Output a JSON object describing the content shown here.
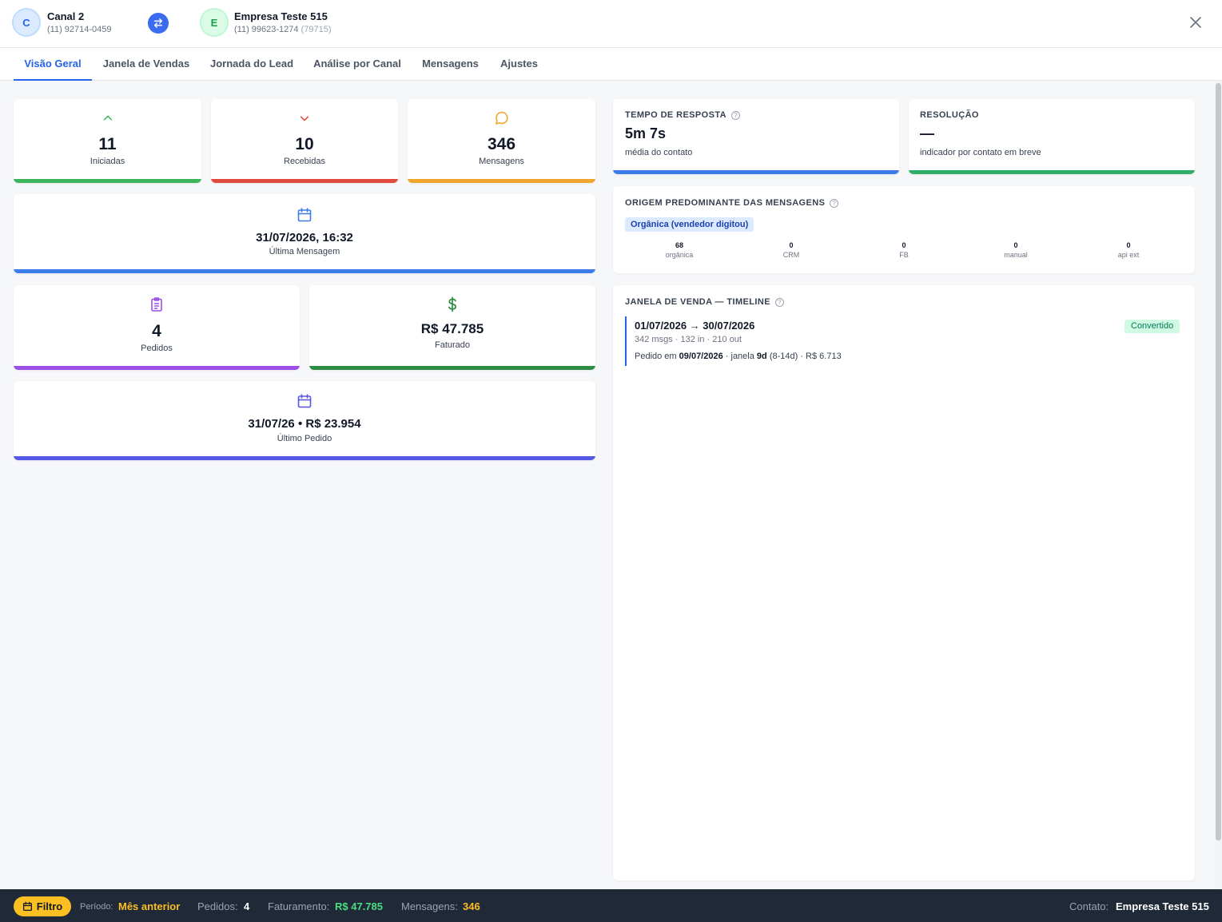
{
  "header": {
    "left_contact": {
      "initial": "C",
      "name": "Canal 2",
      "phone": "(11) 92714-0459"
    },
    "right_contact": {
      "initial": "E",
      "name": "Empresa Teste 515",
      "phone": "(11) 99623-1274",
      "code": "(79715)"
    }
  },
  "tabs": [
    {
      "label": "Visão Geral",
      "active": true
    },
    {
      "label": "Janela de Vendas"
    },
    {
      "label": "Jornada do Lead"
    },
    {
      "label": "Análise por Canal"
    },
    {
      "label": "Mensagens"
    },
    {
      "label": "Ajustes"
    }
  ],
  "stats": {
    "iniciadas": {
      "value": "11",
      "label": "Iniciadas",
      "color": "#3bb55c"
    },
    "recebidas": {
      "value": "10",
      "label": "Recebidas",
      "color": "#e04a3f"
    },
    "mensagens": {
      "value": "346",
      "label": "Mensagens",
      "color": "#f0a52c"
    },
    "ultima_mensagem": {
      "value": "31/07/2026, 16:32",
      "label": "Última Mensagem",
      "color": "#3b7bea"
    },
    "pedidos": {
      "value": "4",
      "label": "Pedidos",
      "color": "#9b4fe8"
    },
    "faturado": {
      "value": "R$ 47.785",
      "label": "Faturado",
      "color": "#2e8b42"
    },
    "ultimo_pedido": {
      "value": "31/07/26 • R$ 23.954",
      "label": "Último Pedido",
      "color": "#5557e6"
    }
  },
  "tempo_resposta": {
    "title": "TEMPO DE RESPOSTA",
    "value": "5m 7s",
    "sub": "média do contato",
    "color": "#3b7bea"
  },
  "resolucao": {
    "title": "RESOLUÇÃO",
    "value": "—",
    "sub": "indicador por contato em breve",
    "color": "#2fae68"
  },
  "origem": {
    "title": "ORIGEM PREDOMINANTE DAS MENSAGENS",
    "badge": "Orgânica (vendedor digitou)",
    "counts": [
      {
        "value": "68",
        "label": "orgânica"
      },
      {
        "value": "0",
        "label": "CRM"
      },
      {
        "value": "0",
        "label": "FB"
      },
      {
        "value": "0",
        "label": "manual"
      },
      {
        "value": "0",
        "label": "api ext"
      }
    ]
  },
  "timeline": {
    "title": "JANELA DE VENDA — TIMELINE",
    "range": "01/07/2026 → 30/07/2026",
    "sub": "342 msgs · 132 in · 210 out",
    "badge": "Convertido",
    "order_prefix": "Pedido em ",
    "order_date": "09/07/2026",
    "order_mid": " · janela ",
    "order_window": "9d",
    "order_suffix": " (8-14d) · R$ 6.713"
  },
  "footer": {
    "filter_label": "Filtro",
    "periodo_label": "Período:",
    "periodo_value": "Mês anterior",
    "pedidos_label": "Pedidos:",
    "pedidos_value": "4",
    "faturamento_label": "Faturamento:",
    "faturamento_value": "R$ 47.785",
    "mensagens_label": "Mensagens:",
    "mensagens_value": "346",
    "contato_label": "Contato:",
    "contato_value": "Empresa Teste 515",
    "colors": {
      "periodo": "#fbbf24",
      "faturamento": "#4ade80",
      "mensagens": "#fbbf24"
    }
  },
  "icons": {
    "swap": "swap-arrows-icon",
    "close": "close-icon",
    "iniciadas": "chevron-up-icon",
    "recebidas": "chevron-down-icon",
    "mensagens": "chat-bubble-icon",
    "calendar": "calendar-icon",
    "pedidos": "clipboard-list-icon",
    "faturado": "dollar-icon",
    "help": "help-circle-icon"
  }
}
